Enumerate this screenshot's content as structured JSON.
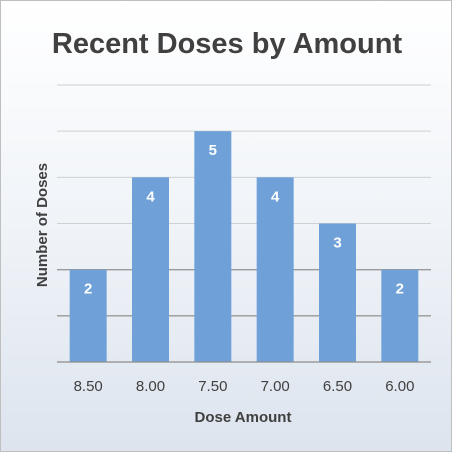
{
  "chart_data": {
    "type": "bar",
    "title": "Recent Doses by Amount",
    "xlabel": "Dose Amount",
    "ylabel": "Number of Doses",
    "categories": [
      "8.50",
      "8.00",
      "7.50",
      "7.00",
      "6.50",
      "6.00"
    ],
    "values": [
      2,
      4,
      5,
      4,
      3,
      2
    ],
    "ylim": [
      0,
      6
    ],
    "grid": true,
    "legend": "none",
    "colors": {
      "bar": "#6fa1d8",
      "data_label": "#ffffff"
    }
  }
}
